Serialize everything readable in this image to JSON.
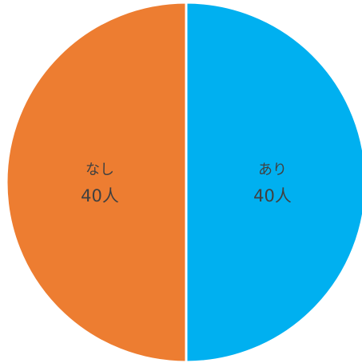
{
  "chart_data": {
    "type": "pie",
    "categories": [
      "あり",
      "なし"
    ],
    "values": [
      40,
      40
    ],
    "value_labels": [
      "40人",
      "40人"
    ],
    "colors": [
      "#00b0f0",
      "#ed7d31"
    ]
  }
}
